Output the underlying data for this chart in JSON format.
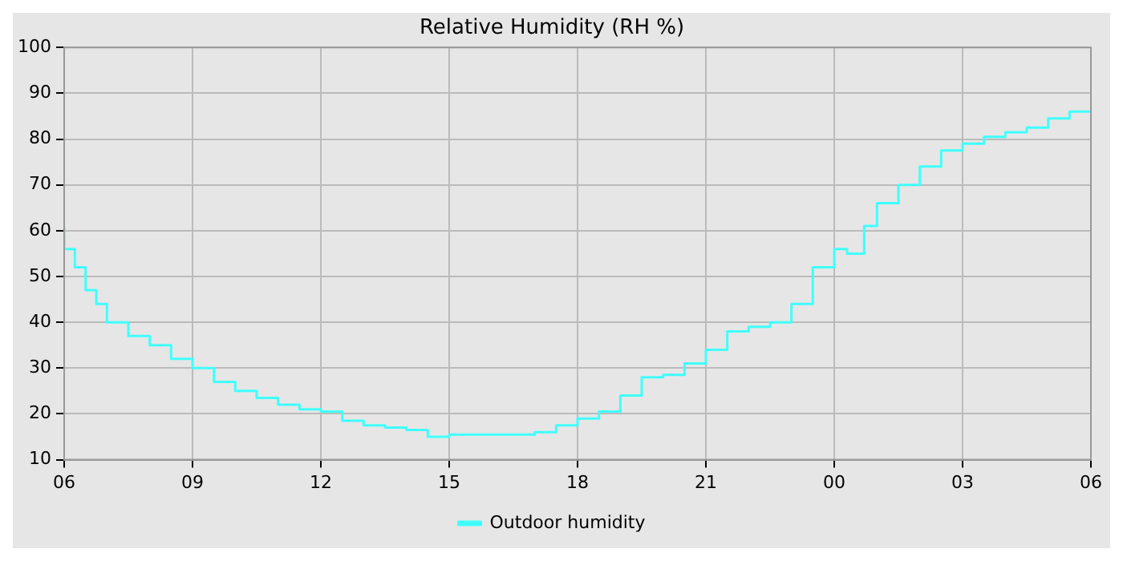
{
  "chart_data": {
    "type": "step",
    "title": "Relative Humidity (RH %)",
    "x": [
      6,
      6.25,
      6.5,
      6.75,
      7,
      7.5,
      8,
      8.5,
      9,
      9.5,
      10,
      10.5,
      11,
      11.5,
      12,
      12.5,
      13,
      13.5,
      14,
      14.5,
      15,
      15.5,
      16,
      16.5,
      17,
      17.5,
      18,
      18.5,
      19,
      19.5,
      20,
      20.5,
      21,
      21.5,
      22,
      22.5,
      23,
      23.5,
      24,
      24.3,
      24.7,
      25,
      25.5,
      26,
      26.5,
      27,
      27.5,
      28,
      28.5,
      29,
      29.5,
      30
    ],
    "series": [
      {
        "name": "Outdoor humidity",
        "color": "#40ffff",
        "values": [
          61,
          56,
          52,
          47,
          44,
          40,
          37,
          35,
          32,
          30,
          27,
          25,
          23.5,
          22,
          21,
          20.5,
          18.5,
          17.5,
          17,
          16.5,
          15,
          15.5,
          15.5,
          15.5,
          15.5,
          16,
          17.5,
          19,
          20.5,
          24,
          28,
          28.5,
          31,
          34,
          38,
          39,
          40,
          44,
          52,
          56,
          55,
          61,
          66,
          70,
          74,
          77.5,
          79,
          80.5,
          81.5,
          82.5,
          84.5,
          86
        ]
      }
    ],
    "xlim": [
      6,
      30
    ],
    "xticks": [
      {
        "value": 6,
        "label": "06"
      },
      {
        "value": 9,
        "label": "09"
      },
      {
        "value": 12,
        "label": "12"
      },
      {
        "value": 15,
        "label": "15"
      },
      {
        "value": 18,
        "label": "18"
      },
      {
        "value": 21,
        "label": "21"
      },
      {
        "value": 24,
        "label": "00"
      },
      {
        "value": 27,
        "label": "03"
      },
      {
        "value": 30,
        "label": "06"
      }
    ],
    "ylim": [
      10,
      100
    ],
    "yticks": [
      10,
      20,
      30,
      40,
      50,
      60,
      70,
      80,
      90,
      100
    ],
    "grid": true,
    "legend": "bottom",
    "line_style": "solid",
    "marker": "none"
  }
}
